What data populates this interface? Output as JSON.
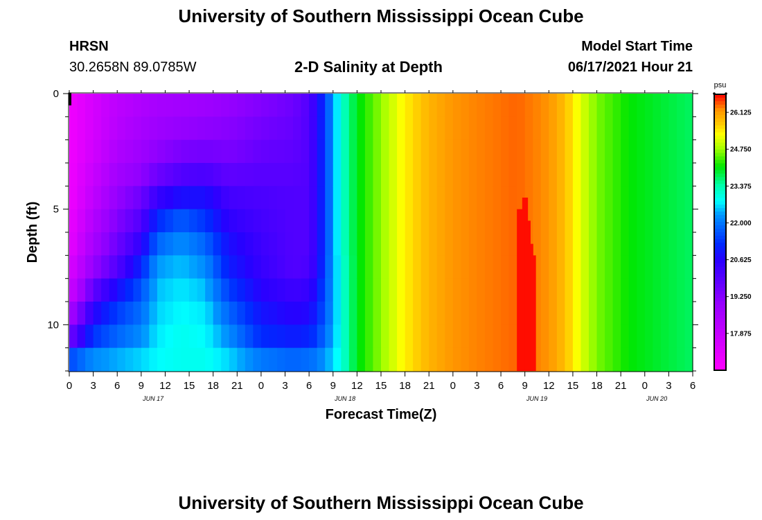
{
  "header": {
    "title": "University of Southern Mississippi Ocean Cube",
    "station": "HRSN",
    "coords": "30.2658N  89.0785W",
    "plot_title": "2-D Salinity at Depth",
    "model_label": "Model Start Time",
    "model_time": "06/17/2021 Hour 21"
  },
  "footer": {
    "title": "University of Southern Mississippi Ocean Cube"
  },
  "chart_data": {
    "type": "heatmap",
    "title": "2-D Salinity at Depth",
    "xlabel": "Forecast Time(Z)",
    "ylabel": "Depth (ft)",
    "x_ticks": [
      "0",
      "3",
      "6",
      "9",
      "12",
      "15",
      "18",
      "21",
      "0",
      "3",
      "6",
      "9",
      "12",
      "15",
      "18",
      "21",
      "0",
      "3",
      "6",
      "9",
      "12",
      "15",
      "18",
      "21",
      "0",
      "3",
      "6"
    ],
    "date_labels": [
      {
        "label": "JUN 17",
        "hour": 10.5
      },
      {
        "label": "JUN 18",
        "hour": 34.5
      },
      {
        "label": "JUN 19",
        "hour": 58.5
      },
      {
        "label": "JUN 20",
        "hour": 73.5
      }
    ],
    "y_ticks": [
      "0",
      "5",
      "10"
    ],
    "x_range_hours": [
      0,
      78
    ],
    "depth_range_ft": [
      0,
      12
    ],
    "depth_levels_ft": [
      0.5,
      1.5,
      2.5,
      3.5,
      4.5,
      5.5,
      6.5,
      7.5,
      8.5,
      9.5,
      10.5,
      11.5
    ],
    "colorbar": {
      "unit": "psu",
      "labels": [
        "26.125",
        "24.750",
        "23.375",
        "22.000",
        "20.625",
        "19.250",
        "17.875"
      ],
      "min": 16.5,
      "max": 26.8
    },
    "keyframes": [
      {
        "hour": 0,
        "profile": [
          16.8,
          16.8,
          16.8,
          16.8,
          16.8,
          16.9,
          17.0,
          17.3,
          17.6,
          18.5,
          19.5,
          21.5
        ]
      },
      {
        "hour": 3,
        "profile": [
          17.5,
          17.5,
          17.6,
          17.8,
          18.0,
          18.3,
          18.6,
          19.0,
          19.8,
          20.6,
          21.3,
          22.2
        ]
      },
      {
        "hour": 6,
        "profile": [
          18.1,
          18.2,
          18.4,
          18.7,
          19.0,
          19.3,
          19.6,
          20.0,
          20.8,
          21.4,
          21.8,
          22.4
        ]
      },
      {
        "hour": 9,
        "profile": [
          18.4,
          18.6,
          18.8,
          19.1,
          19.6,
          20.0,
          20.5,
          21.1,
          21.6,
          21.9,
          22.2,
          22.6
        ]
      },
      {
        "hour": 11,
        "profile": [
          18.6,
          18.8,
          19.1,
          19.6,
          20.4,
          21.2,
          21.8,
          22.3,
          22.5,
          22.6,
          22.7,
          22.8
        ]
      },
      {
        "hour": 14,
        "profile": [
          18.7,
          19.0,
          19.4,
          20.0,
          20.8,
          21.7,
          22.2,
          22.5,
          22.7,
          22.8,
          22.9,
          22.9
        ]
      },
      {
        "hour": 17,
        "profile": [
          18.8,
          19.1,
          19.5,
          20.1,
          20.8,
          21.3,
          21.8,
          22.2,
          22.5,
          22.7,
          22.8,
          22.9
        ]
      },
      {
        "hour": 20,
        "profile": [
          19.0,
          19.2,
          19.4,
          19.8,
          20.2,
          20.5,
          20.8,
          21.0,
          21.4,
          21.8,
          22.2,
          22.6
        ]
      },
      {
        "hour": 24,
        "profile": [
          19.3,
          19.5,
          19.7,
          19.9,
          20.1,
          20.2,
          20.3,
          20.4,
          20.6,
          20.9,
          21.2,
          22.0
        ]
      },
      {
        "hour": 28,
        "profile": [
          19.6,
          19.7,
          19.8,
          19.9,
          20.0,
          20.0,
          20.0,
          20.0,
          20.3,
          20.6,
          21.0,
          21.8
        ]
      },
      {
        "hour": 30,
        "profile": [
          20.0,
          20.0,
          20.0,
          20.0,
          20.0,
          20.0,
          20.0,
          20.1,
          20.4,
          20.7,
          21.1,
          21.9
        ]
      },
      {
        "hour": 31,
        "profile": [
          20.6,
          20.6,
          20.6,
          20.6,
          20.6,
          20.6,
          20.6,
          20.6,
          20.9,
          21.1,
          21.4,
          22.0
        ]
      },
      {
        "hour": 32,
        "profile": [
          21.4,
          21.4,
          21.4,
          21.4,
          21.4,
          21.4,
          21.4,
          21.5,
          21.6,
          21.7,
          21.9,
          22.3
        ]
      },
      {
        "hour": 33,
        "profile": [
          22.3,
          22.3,
          22.3,
          22.3,
          22.3,
          22.3,
          22.3,
          22.3,
          22.3,
          22.3,
          22.4,
          22.6
        ]
      },
      {
        "hour": 34,
        "profile": [
          23.1,
          23.1,
          23.1,
          23.1,
          23.1,
          23.1,
          23.1,
          23.0,
          23.0,
          23.0,
          23.0,
          23.0
        ]
      },
      {
        "hour": 36,
        "profile": [
          24.0,
          24.0,
          24.0,
          24.0,
          24.0,
          24.0,
          24.0,
          24.0,
          24.0,
          24.0,
          24.0,
          24.0
        ]
      },
      {
        "hour": 39,
        "profile": [
          24.7,
          24.7,
          24.7,
          24.7,
          24.7,
          24.7,
          24.7,
          24.7,
          24.7,
          24.7,
          24.7,
          24.7
        ]
      },
      {
        "hour": 42,
        "profile": [
          25.4,
          25.4,
          25.4,
          25.4,
          25.4,
          25.4,
          25.4,
          25.4,
          25.4,
          25.4,
          25.4,
          25.4
        ]
      },
      {
        "hour": 45,
        "profile": [
          25.9,
          25.9,
          25.9,
          25.9,
          25.9,
          25.9,
          25.9,
          25.9,
          25.9,
          25.9,
          25.9,
          25.9
        ]
      },
      {
        "hour": 48,
        "profile": [
          26.2,
          26.2,
          26.2,
          26.2,
          26.2,
          26.2,
          26.2,
          26.2,
          26.2,
          26.2,
          26.2,
          26.2
        ]
      },
      {
        "hour": 52,
        "profile": [
          26.3,
          26.3,
          26.3,
          26.3,
          26.3,
          26.3,
          26.3,
          26.3,
          26.3,
          26.3,
          26.3,
          26.3
        ]
      },
      {
        "hour": 56,
        "profile": [
          26.4,
          26.4,
          26.4,
          26.4,
          26.4,
          26.4,
          26.4,
          26.4,
          26.4,
          26.4,
          26.4,
          26.4
        ]
      },
      {
        "hour": 60,
        "profile": [
          26.2,
          26.2,
          26.2,
          26.2,
          26.2,
          26.2,
          26.2,
          26.2,
          26.2,
          26.2,
          26.2,
          26.2
        ]
      },
      {
        "hour": 62,
        "profile": [
          25.8,
          25.8,
          25.8,
          25.8,
          25.8,
          25.8,
          25.8,
          25.8,
          25.8,
          25.8,
          25.8,
          25.8
        ]
      },
      {
        "hour": 64,
        "profile": [
          25.1,
          25.1,
          25.1,
          25.1,
          25.1,
          25.1,
          25.1,
          25.1,
          25.1,
          25.1,
          25.1,
          25.1
        ]
      },
      {
        "hour": 66,
        "profile": [
          24.6,
          24.6,
          24.6,
          24.6,
          24.6,
          24.6,
          24.6,
          24.6,
          24.6,
          24.6,
          24.6,
          24.6
        ]
      },
      {
        "hour": 70,
        "profile": [
          24.1,
          24.1,
          24.1,
          24.1,
          24.1,
          24.1,
          24.1,
          24.1,
          24.1,
          24.1,
          24.1,
          24.1
        ]
      },
      {
        "hour": 78,
        "profile": [
          23.7,
          23.7,
          23.7,
          23.7,
          23.7,
          23.7,
          23.7,
          23.7,
          23.7,
          23.7,
          23.7,
          23.7
        ]
      }
    ],
    "anomaly": {
      "hours": [
        56,
        58
      ],
      "value": 26.75,
      "from_depth_ft": [
        5,
        5,
        4.5,
        4.5,
        5.5,
        6.5,
        7
      ]
    }
  }
}
